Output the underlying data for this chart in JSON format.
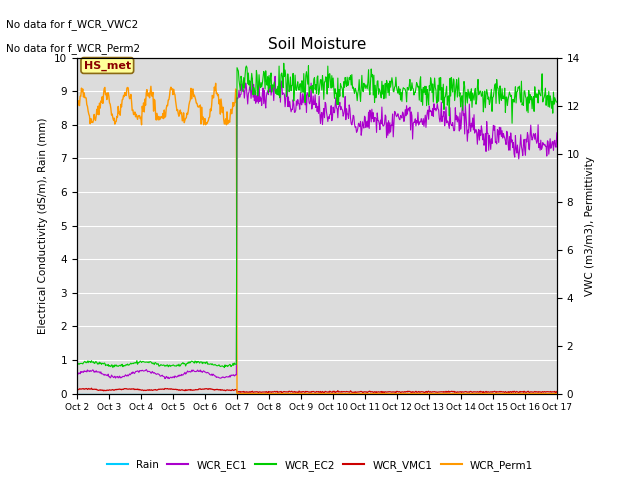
{
  "title": "Soil Moisture",
  "ylabel_left": "Electrical Conductivity (dS/m), Rain (mm)",
  "ylabel_right": "VWC (m3/m3), Permittivity",
  "ylim_left": [
    0.0,
    10.0
  ],
  "ylim_right": [
    0,
    14
  ],
  "no_data_text": [
    "No data for f_WCR_VWC2",
    "No data for f_WCR_Perm2"
  ],
  "station_label": "HS_met",
  "station_label_color": "#8b0000",
  "station_label_bg": "#ffff99",
  "station_label_edge": "#8b6914",
  "background_color": "#dcdcdc",
  "grid_color": "#ffffff",
  "colors": {
    "Rain": "#00ccff",
    "WCR_EC1": "#aa00cc",
    "WCR_EC2": "#00cc00",
    "WCR_VMC1": "#cc0000",
    "WCR_Perm1": "#ff9900"
  },
  "x_labels": [
    "Oct 2",
    "Oct 3",
    "Oct 4",
    "Oct 5",
    "Oct 6",
    "Oct 7",
    "Oct 8",
    "Oct 9",
    "Oct 10",
    "Oct 11",
    "Oct 12",
    "Oct 13",
    "Oct 14",
    "Oct 15",
    "Oct 16",
    "Oct 17"
  ],
  "right_yticks": [
    0,
    2,
    4,
    6,
    8,
    10,
    12,
    14
  ],
  "right_yticklabels": [
    "0",
    "2",
    "4",
    "6",
    "8",
    "10",
    "12",
    "14"
  ]
}
